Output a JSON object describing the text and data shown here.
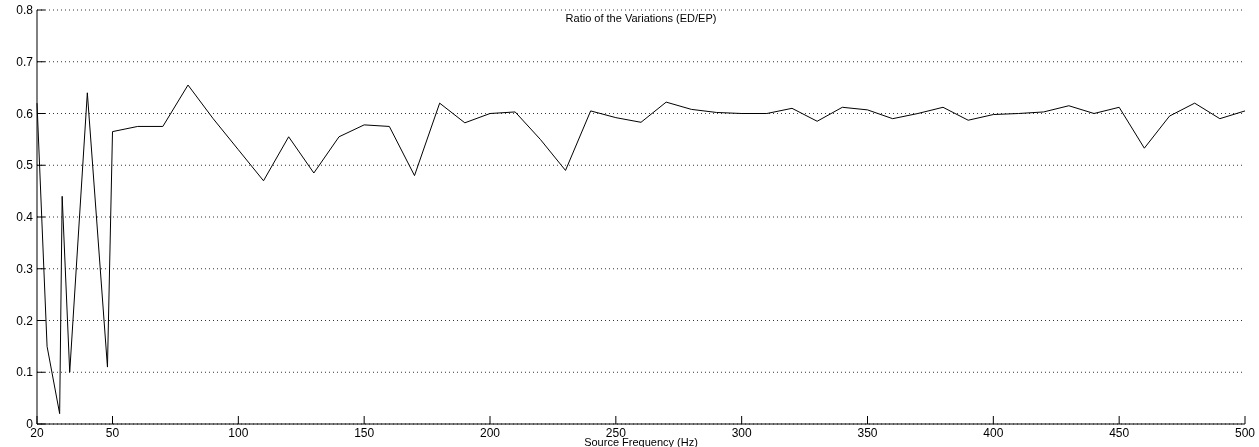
{
  "chart_data": {
    "type": "line",
    "title": "Ratio of the Variations (ED/EP)",
    "xlabel": "Source Frequency (Hz)",
    "x": [
      20,
      24,
      29,
      30,
      33,
      40,
      48,
      50,
      60,
      70,
      80,
      90,
      100,
      110,
      120,
      130,
      140,
      150,
      160,
      170,
      180,
      190,
      200,
      210,
      220,
      230,
      240,
      250,
      260,
      270,
      280,
      290,
      300,
      310,
      320,
      330,
      340,
      350,
      360,
      370,
      380,
      390,
      400,
      410,
      420,
      430,
      440,
      450,
      460,
      470,
      480,
      490,
      500
    ],
    "series": [
      {
        "color": "#000000",
        "values": [
          0.62,
          0.15,
          0.02,
          0.44,
          0.1,
          0.64,
          0.11,
          0.565,
          0.575,
          0.575,
          0.655,
          0.59,
          0.53,
          0.47,
          0.555,
          0.485,
          0.555,
          0.578,
          0.575,
          0.48,
          0.62,
          0.582,
          0.6,
          0.603,
          0.55,
          0.49,
          0.605,
          0.592,
          0.583,
          0.622,
          0.608,
          0.602,
          0.6,
          0.6,
          0.61,
          0.585,
          0.612,
          0.607,
          0.59,
          0.6,
          0.612,
          0.587,
          0.598,
          0.6,
          0.603,
          0.615,
          0.6,
          0.612,
          0.533,
          0.595,
          0.62,
          0.59,
          0.605
        ]
      }
    ],
    "xlim": [
      20,
      500
    ],
    "xticks": [
      20,
      50,
      100,
      150,
      200,
      250,
      300,
      350,
      400,
      450,
      500
    ],
    "ylim": [
      0,
      0.8
    ],
    "yticks": [
      0,
      0.1,
      0.2,
      0.3,
      0.4,
      0.5,
      0.6,
      0.7,
      0.8
    ],
    "grid": "y",
    "line_style": "solid",
    "marker": "none"
  }
}
